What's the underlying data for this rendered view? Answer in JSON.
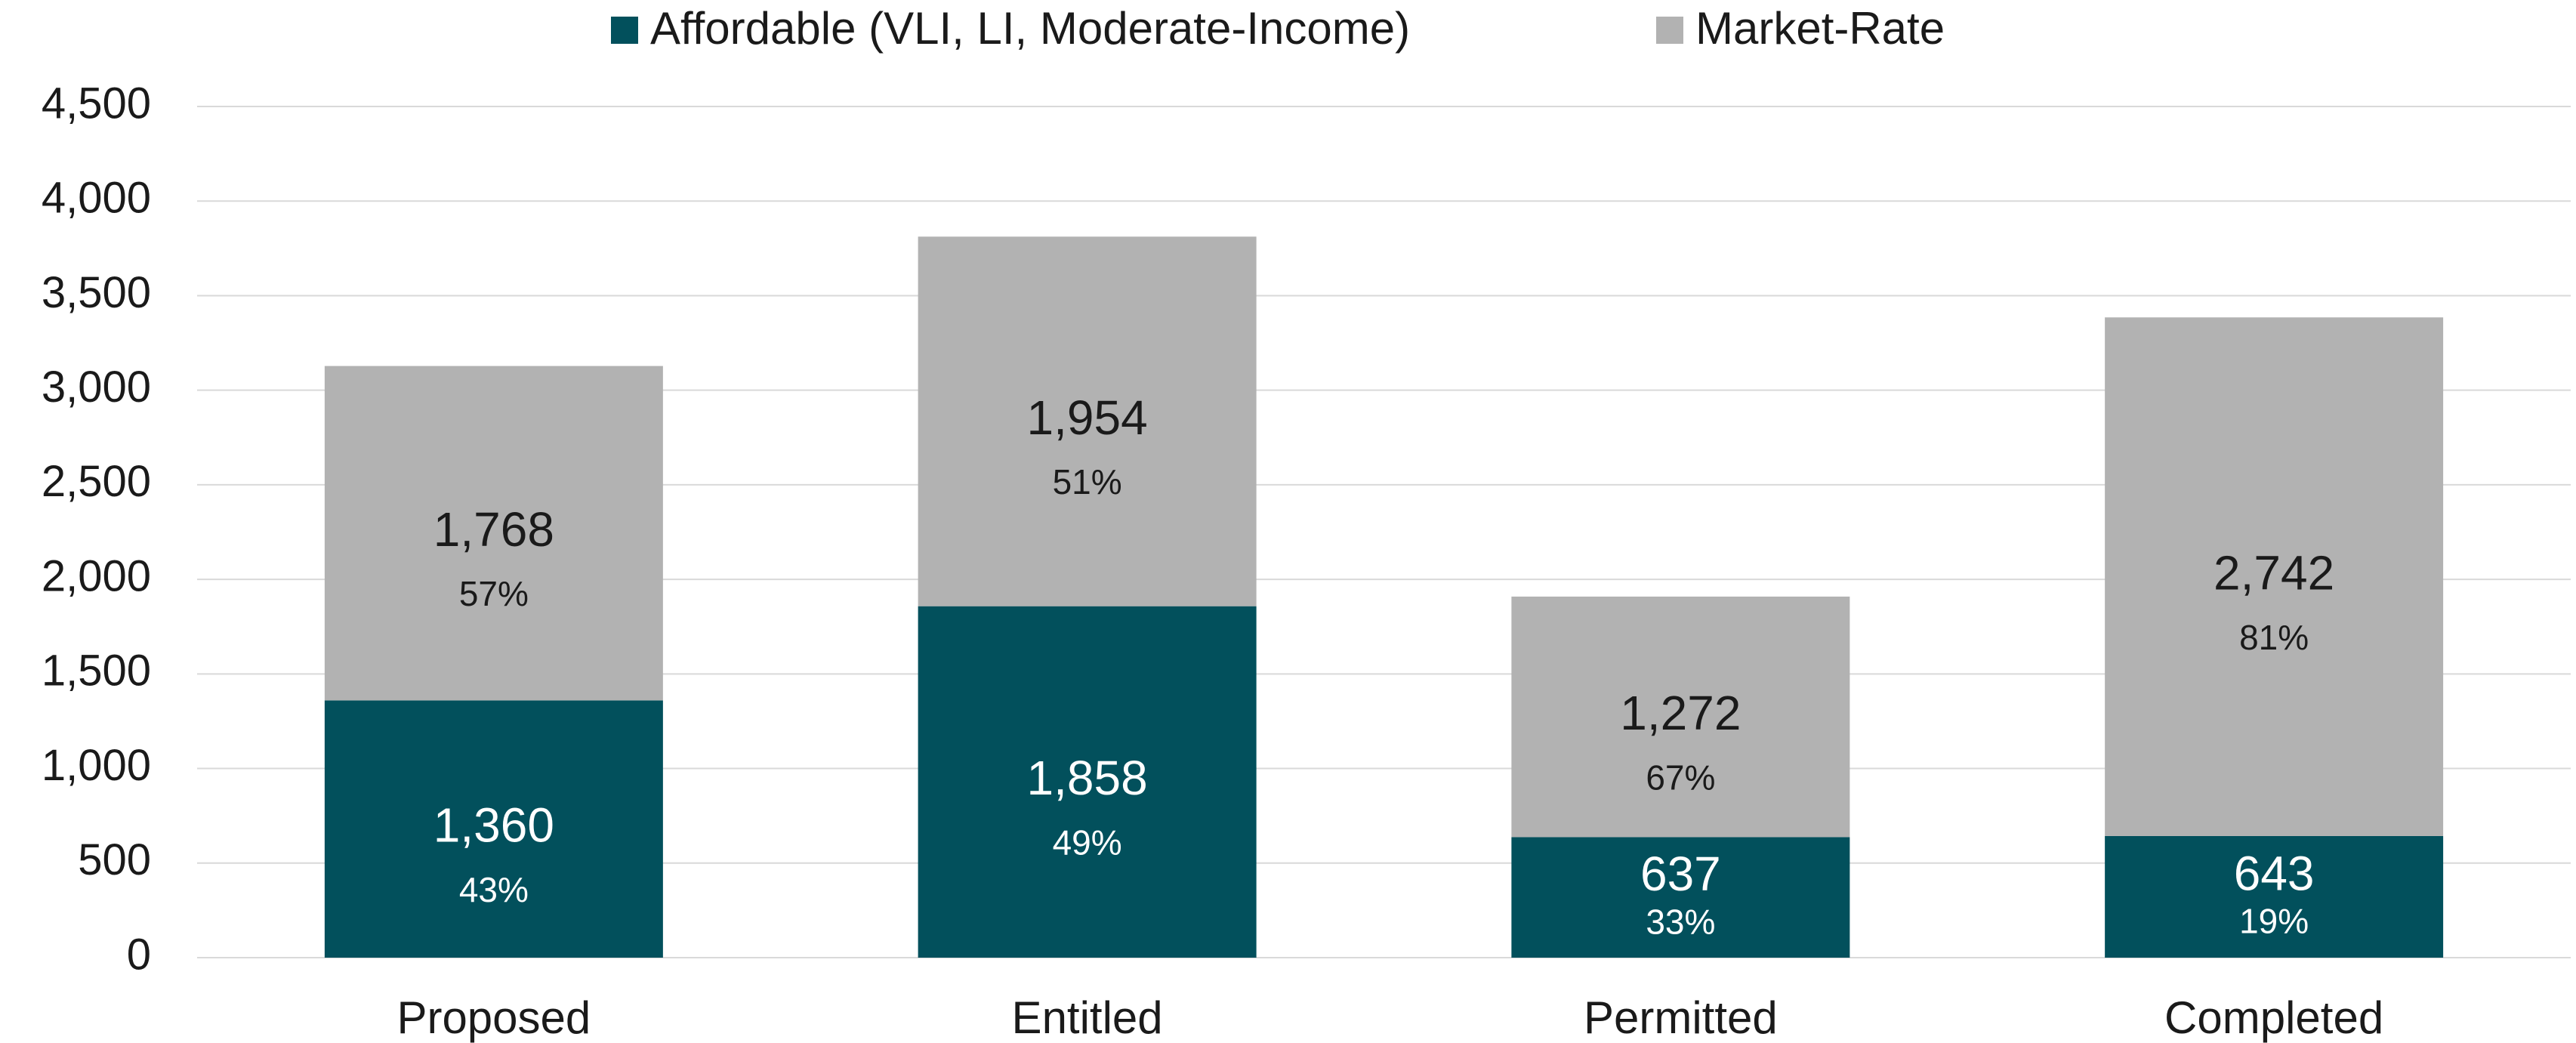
{
  "chart_data": {
    "type": "stacked_bar",
    "categories": [
      "Proposed",
      "Entitled",
      "Permitted",
      "Completed"
    ],
    "series": [
      {
        "name": "Affordable (VLI, LI, Moderate-Income)",
        "color": "#02505c",
        "values": [
          1360,
          1858,
          637,
          643
        ],
        "value_labels": [
          "1,360",
          "1,858",
          "637",
          "643"
        ],
        "percent_labels": [
          "43%",
          "49%",
          "33%",
          "19%"
        ]
      },
      {
        "name": "Market-Rate",
        "color": "#b2b2b2",
        "values": [
          1768,
          1954,
          1272,
          2742
        ],
        "value_labels": [
          "1,768",
          "1,954",
          "1,272",
          "2,742"
        ],
        "percent_labels": [
          "57%",
          "51%",
          "67%",
          "81%"
        ]
      }
    ],
    "ylim": [
      0,
      4500
    ],
    "yticks": [
      0,
      500,
      {
        "value": 1000,
        "label": "1,000"
      },
      {
        "value": 1500,
        "label": "1,500"
      },
      {
        "value": 2000,
        "label": "2,000"
      },
      {
        "value": 2500,
        "label": "2,500"
      },
      {
        "value": 3000,
        "label": "3,000"
      },
      {
        "value": 3500,
        "label": "3,500"
      },
      {
        "value": 4000,
        "label": "4,000"
      },
      {
        "value": 4500,
        "label": "4,500"
      }
    ],
    "grid": true,
    "legend": "top"
  }
}
